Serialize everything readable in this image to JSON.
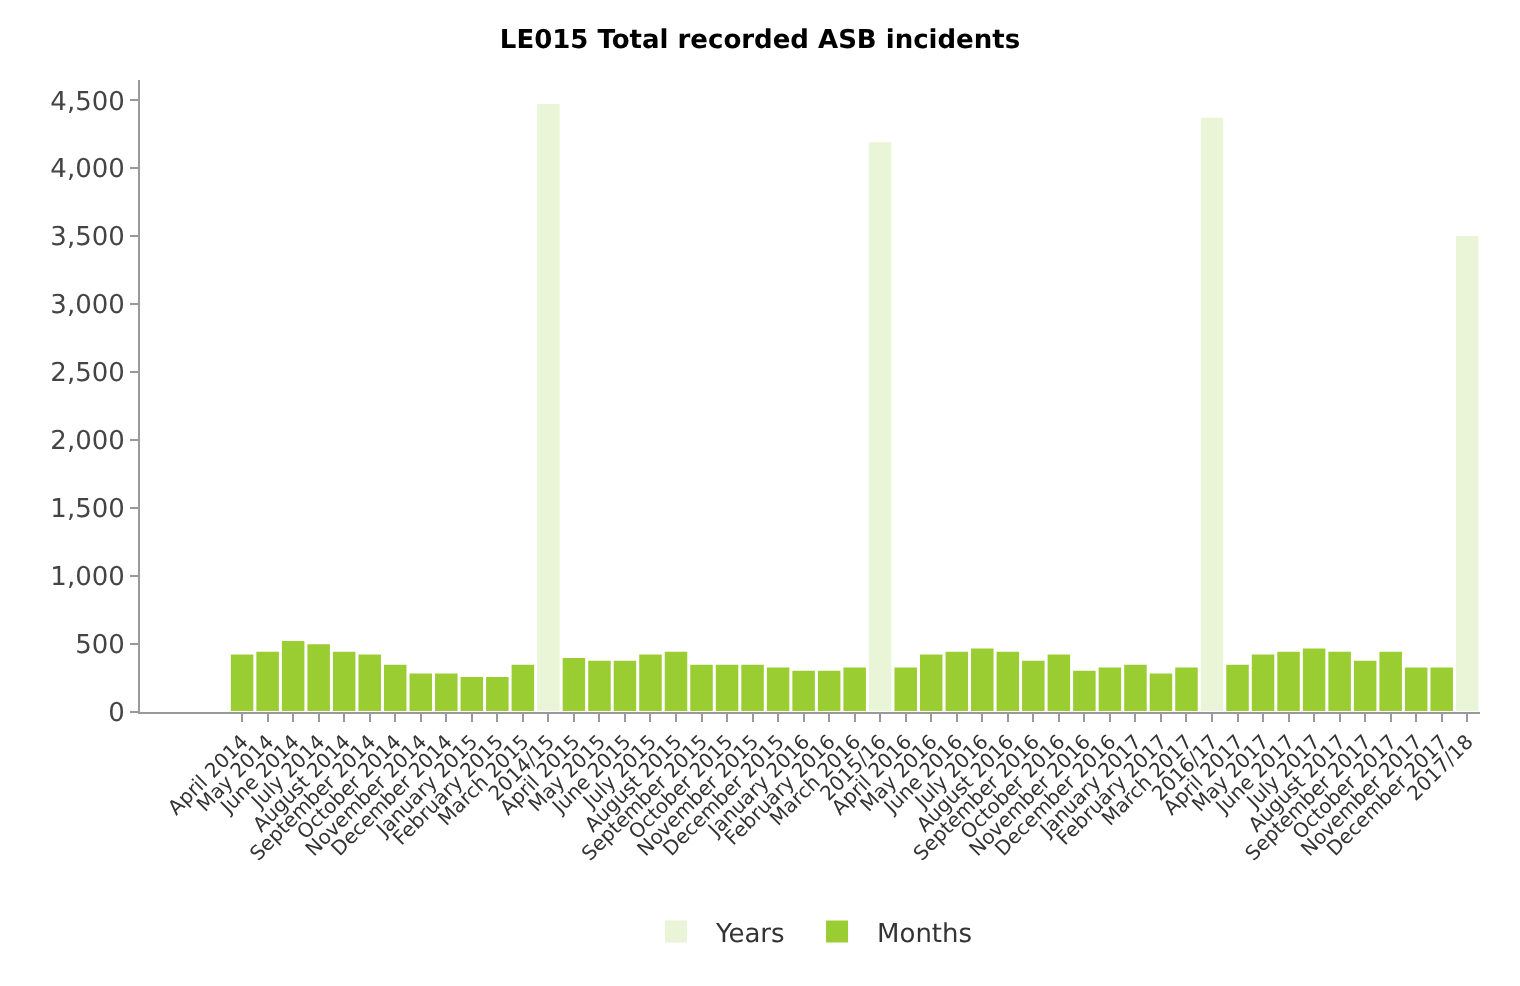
{
  "chart_data": {
    "type": "bar",
    "title": "LE015 Total recorded ASB incidents",
    "categories": [
      "April 2014",
      "May 2014",
      "June 2014",
      "July 2014",
      "August 2014",
      "September 2014",
      "October 2014",
      "November 2014",
      "December 2014",
      "January 2015",
      "February 2015",
      "March 2015",
      "2014/15",
      "April 2015",
      "May 2015",
      "June 2015",
      "July 2015",
      "August 2015",
      "September 2015",
      "October 2015",
      "November 2015",
      "December 2015",
      "January 2016",
      "February 2016",
      "March 2016",
      "2015/16",
      "April 2016",
      "May 2016",
      "June 2016",
      "July 2016",
      "August 2016",
      "September 2016",
      "October 2016",
      "November 2016",
      "December 2016",
      "January 2017",
      "February 2017",
      "March 2017",
      "2016/17",
      "April 2017",
      "May 2017",
      "June 2017",
      "July 2017",
      "August 2017",
      "September 2017",
      "October 2017",
      "November 2017",
      "December 2017",
      "2017/18"
    ],
    "series": [
      {
        "name": "Years",
        "color": "#e9f5d6",
        "values": [
          null,
          null,
          null,
          null,
          null,
          null,
          null,
          null,
          null,
          null,
          null,
          null,
          4480,
          null,
          null,
          null,
          null,
          null,
          null,
          null,
          null,
          null,
          null,
          null,
          null,
          4200,
          null,
          null,
          null,
          null,
          null,
          null,
          null,
          null,
          null,
          null,
          null,
          null,
          4380,
          null,
          null,
          null,
          null,
          null,
          null,
          null,
          null,
          null,
          3510
        ]
      },
      {
        "name": "Months",
        "color": "#9acd32",
        "values": [
          430,
          450,
          530,
          505,
          450,
          430,
          355,
          290,
          290,
          265,
          265,
          355,
          null,
          405,
          385,
          385,
          430,
          450,
          355,
          355,
          355,
          335,
          310,
          310,
          335,
          null,
          335,
          430,
          450,
          475,
          450,
          385,
          430,
          310,
          335,
          355,
          290,
          335,
          null,
          355,
          430,
          450,
          475,
          450,
          385,
          450,
          335,
          335,
          null
        ]
      }
    ],
    "ylim": [
      0,
      4650
    ],
    "yticks": [
      {
        "value": 0,
        "label": "0"
      },
      {
        "value": 500,
        "label": "500"
      },
      {
        "value": 1000,
        "label": "1,000"
      },
      {
        "value": 1500,
        "label": "1,500"
      },
      {
        "value": 2000,
        "label": "2,000"
      },
      {
        "value": 2500,
        "label": "2,500"
      },
      {
        "value": 3000,
        "label": "3,000"
      },
      {
        "value": 3500,
        "label": "3,500"
      },
      {
        "value": 4000,
        "label": "4,000"
      },
      {
        "value": 4500,
        "label": "4,500"
      }
    ],
    "grid": false,
    "legend": "bottom"
  }
}
